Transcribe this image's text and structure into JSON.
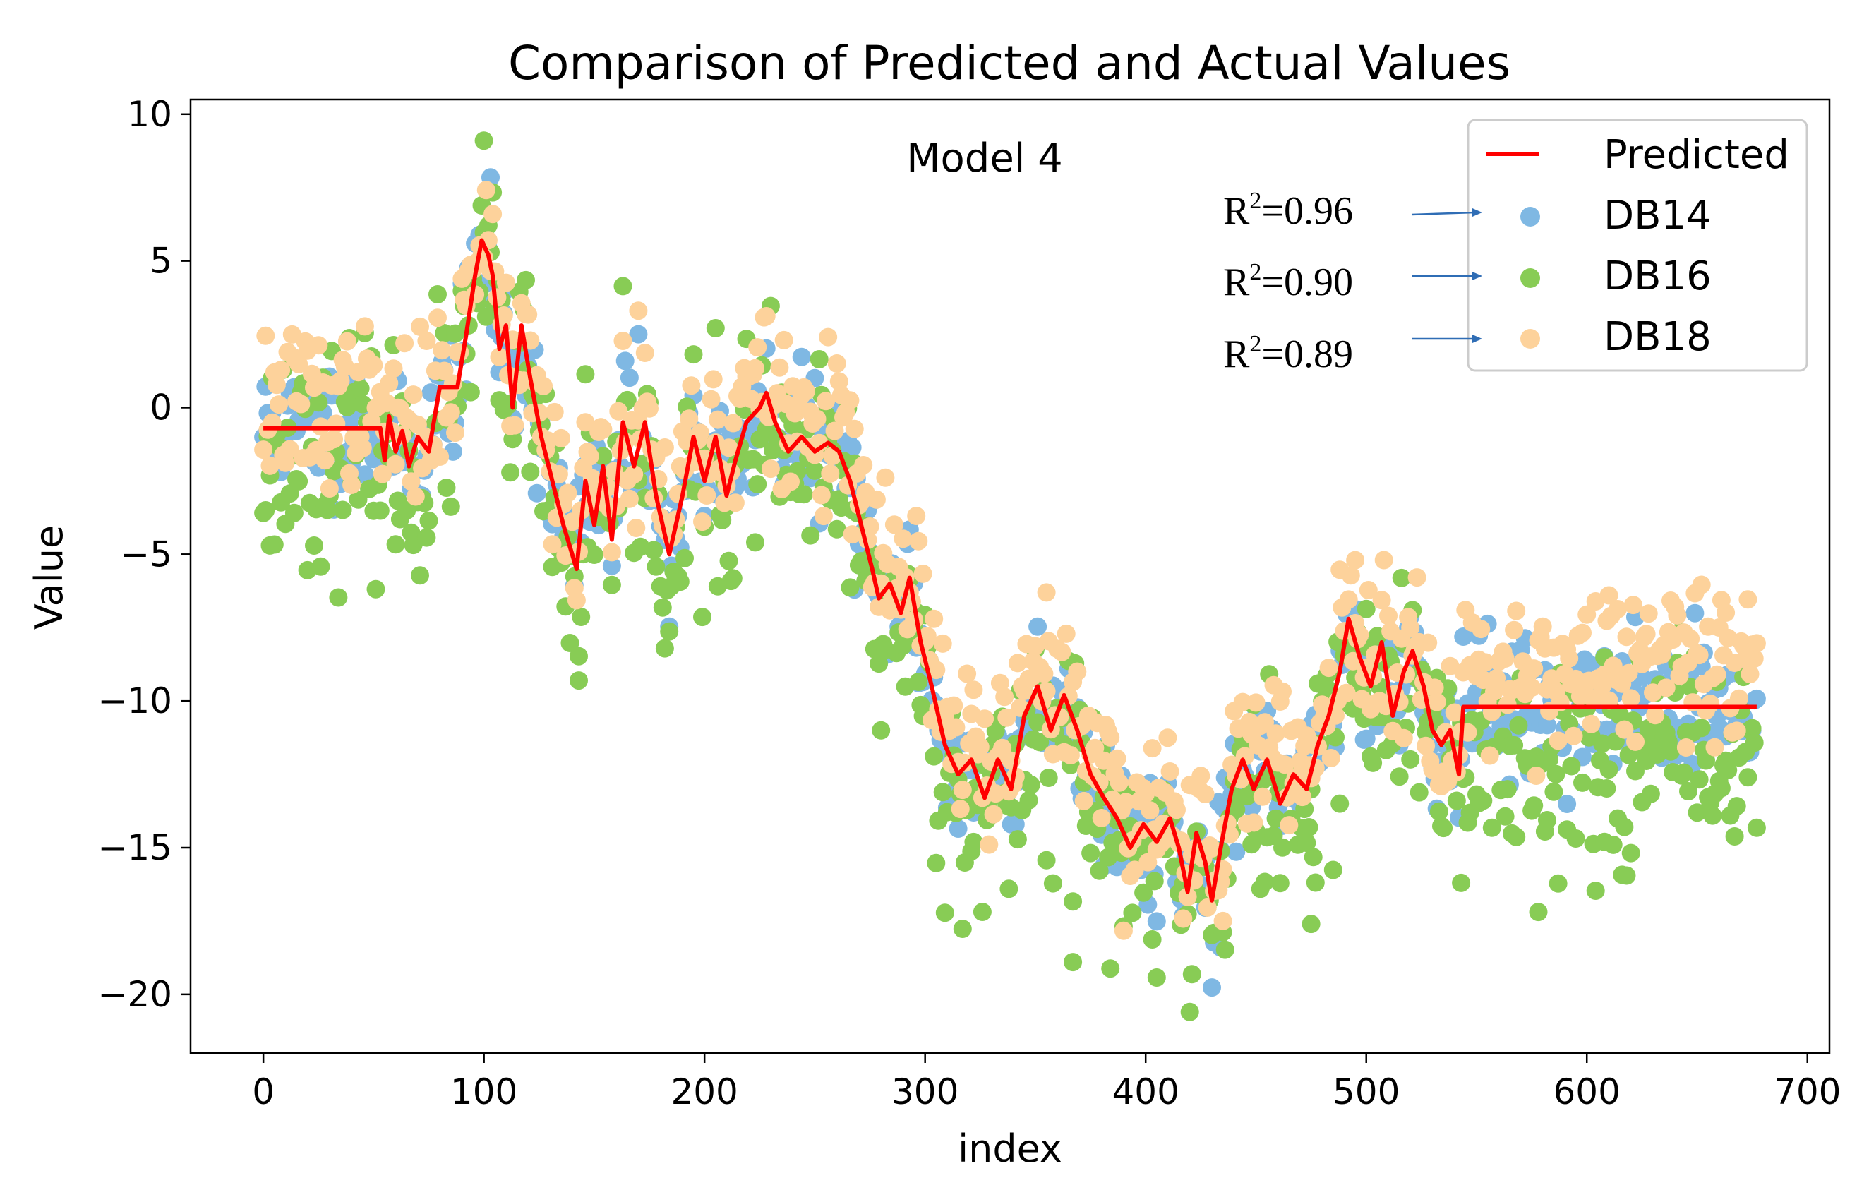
{
  "chart_data": {
    "type": "scatter",
    "title": "Comparison of Predicted and Actual Values",
    "xlabel": "index",
    "ylabel": "Value",
    "xlim": [
      -33,
      710
    ],
    "ylim": [
      -22,
      10.5
    ],
    "xticks": [
      0,
      100,
      200,
      300,
      400,
      500,
      600,
      700
    ],
    "xtick_labels": [
      "0",
      "100",
      "200",
      "300",
      "400",
      "500",
      "600",
      "700"
    ],
    "yticks": [
      10,
      5,
      0,
      -5,
      -10,
      -15,
      -20
    ],
    "ytick_labels": [
      "10",
      "5",
      "0",
      "−5",
      "−10",
      "−15",
      "−20"
    ],
    "grid": false,
    "annotation": "Model 4",
    "legend": {
      "position": "top-right",
      "entries": [
        {
          "label": "Predicted",
          "marker": "line",
          "color": "#ff0000"
        },
        {
          "label": "DB14",
          "marker": "dot",
          "color": "#7fb8e3",
          "r2_label": "R",
          "r2_exp": "2",
          "r2_value": "=0.96"
        },
        {
          "label": "DB16",
          "marker": "dot",
          "color": "#88cc55",
          "r2_label": "R",
          "r2_exp": "2",
          "r2_value": "=0.90"
        },
        {
          "label": "DB18",
          "marker": "dot",
          "color": "#fdd29b",
          "r2_label": "R",
          "r2_exp": "2",
          "r2_value": "=0.89"
        }
      ]
    },
    "predicted_anchors": [
      [
        0,
        -0.7
      ],
      [
        53,
        -0.7
      ],
      [
        55,
        -1.8
      ],
      [
        57,
        -0.3
      ],
      [
        60,
        -1.5
      ],
      [
        63,
        -0.8
      ],
      [
        66,
        -2.0
      ],
      [
        70,
        -1.0
      ],
      [
        75,
        -1.5
      ],
      [
        80,
        0.7
      ],
      [
        88,
        0.7
      ],
      [
        92,
        2.5
      ],
      [
        96,
        4.5
      ],
      [
        99,
        5.7
      ],
      [
        102,
        5.2
      ],
      [
        104,
        4.5
      ],
      [
        107,
        2.0
      ],
      [
        110,
        2.8
      ],
      [
        113,
        0.0
      ],
      [
        117,
        2.8
      ],
      [
        121,
        1.0
      ],
      [
        126,
        -1.0
      ],
      [
        131,
        -2.5
      ],
      [
        136,
        -4.0
      ],
      [
        142,
        -5.5
      ],
      [
        146,
        -2.5
      ],
      [
        150,
        -4.0
      ],
      [
        154,
        -2.0
      ],
      [
        158,
        -4.5
      ],
      [
        163,
        -0.5
      ],
      [
        168,
        -2.0
      ],
      [
        173,
        -0.5
      ],
      [
        178,
        -3.0
      ],
      [
        184,
        -5.0
      ],
      [
        190,
        -3.0
      ],
      [
        195,
        -1.0
      ],
      [
        200,
        -2.5
      ],
      [
        205,
        -1.0
      ],
      [
        210,
        -3.0
      ],
      [
        214,
        -1.8
      ],
      [
        219,
        -0.5
      ],
      [
        225,
        0.0
      ],
      [
        228,
        0.5
      ],
      [
        232,
        -0.5
      ],
      [
        238,
        -1.5
      ],
      [
        244,
        -1.0
      ],
      [
        250,
        -1.5
      ],
      [
        256,
        -1.2
      ],
      [
        261,
        -1.5
      ],
      [
        266,
        -2.5
      ],
      [
        271,
        -4.0
      ],
      [
        276,
        -5.5
      ],
      [
        279,
        -6.5
      ],
      [
        284,
        -6.0
      ],
      [
        289,
        -7.0
      ],
      [
        293,
        -5.8
      ],
      [
        298,
        -8.0
      ],
      [
        303,
        -9.5
      ],
      [
        309,
        -11.5
      ],
      [
        315,
        -12.5
      ],
      [
        321,
        -12.0
      ],
      [
        327,
        -13.3
      ],
      [
        333,
        -12.0
      ],
      [
        339,
        -13.0
      ],
      [
        345,
        -10.5
      ],
      [
        351,
        -9.5
      ],
      [
        357,
        -11.0
      ],
      [
        363,
        -9.8
      ],
      [
        369,
        -11.0
      ],
      [
        375,
        -12.5
      ],
      [
        381,
        -13.3
      ],
      [
        387,
        -14.0
      ],
      [
        393,
        -15.0
      ],
      [
        399,
        -14.2
      ],
      [
        405,
        -14.8
      ],
      [
        411,
        -14.0
      ],
      [
        415,
        -15.0
      ],
      [
        419,
        -16.5
      ],
      [
        423,
        -14.5
      ],
      [
        427,
        -15.5
      ],
      [
        430,
        -16.8
      ],
      [
        434,
        -15.0
      ],
      [
        439,
        -13.0
      ],
      [
        444,
        -12.0
      ],
      [
        449,
        -13.0
      ],
      [
        455,
        -12.0
      ],
      [
        461,
        -13.5
      ],
      [
        467,
        -12.5
      ],
      [
        473,
        -13.0
      ],
      [
        478,
        -11.5
      ],
      [
        483,
        -10.5
      ],
      [
        488,
        -9.0
      ],
      [
        492,
        -7.2
      ],
      [
        497,
        -8.5
      ],
      [
        502,
        -9.5
      ],
      [
        507,
        -8.0
      ],
      [
        512,
        -10.5
      ],
      [
        517,
        -9.0
      ],
      [
        521,
        -8.3
      ],
      [
        526,
        -9.5
      ],
      [
        530,
        -11.0
      ],
      [
        534,
        -11.5
      ],
      [
        538,
        -11.0
      ],
      [
        542,
        -12.5
      ],
      [
        544,
        -10.2
      ],
      [
        677,
        -10.2
      ]
    ],
    "scatter_noise": {
      "DB14": 1.1,
      "DB16": 1.8,
      "DB18": 1.3
    },
    "scatter_offset": {
      "DB14": 0.0,
      "DB16": -0.9,
      "DB18": 0.7
    },
    "scatter_count": 678,
    "scatter_extremes": {
      "DB16": [
        [
          100,
          9.1
        ],
        [
          3,
          -4.7
        ],
        [
          143,
          -9.3
        ],
        [
          420,
          -20.6
        ],
        [
          367,
          -18.9
        ],
        [
          543,
          -16.2
        ],
        [
          475,
          -17.6
        ],
        [
          608,
          -14.8
        ]
      ],
      "DB18": [
        [
          170,
          3.3
        ],
        [
          495,
          -5.2
        ],
        [
          355,
          -6.3
        ],
        [
          610,
          -6.4
        ],
        [
          435,
          -17.5
        ]
      ],
      "DB14": [
        [
          170,
          2.5
        ],
        [
          434,
          -18.4
        ]
      ]
    }
  }
}
